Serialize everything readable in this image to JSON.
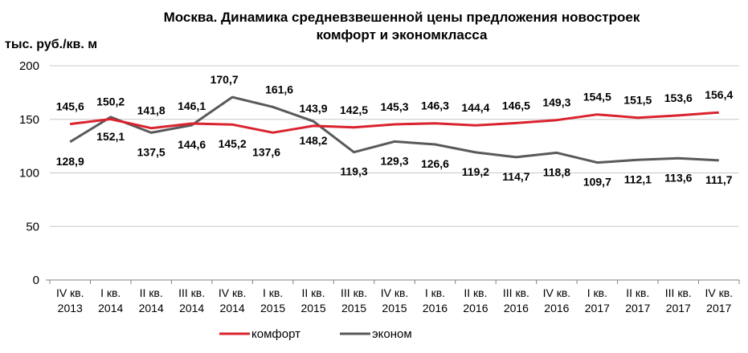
{
  "chart_data": {
    "type": "line",
    "title_line1": "Москва. Динамика средневзвешенной цены предложения новостроек",
    "title_line2": "комфорт и экономкласса",
    "ylabel": "тыс. руб./кв. м",
    "ylim": [
      0,
      200
    ],
    "yticks": [
      0,
      50,
      100,
      150,
      200
    ],
    "grid": true,
    "legend_position": "bottom",
    "categories": [
      {
        "line1": "IV кв.",
        "line2": "2013"
      },
      {
        "line1": "I кв.",
        "line2": "2014"
      },
      {
        "line1": "II кв.",
        "line2": "2014"
      },
      {
        "line1": "III кв.",
        "line2": "2014"
      },
      {
        "line1": "IV кв.",
        "line2": "2014"
      },
      {
        "line1": "I кв.",
        "line2": "2015"
      },
      {
        "line1": "II кв.",
        "line2": "2015"
      },
      {
        "line1": "III кв.",
        "line2": "2015"
      },
      {
        "line1": "IV кв.",
        "line2": "2015"
      },
      {
        "line1": "I кв.",
        "line2": "2016"
      },
      {
        "line1": "II кв.",
        "line2": "2016"
      },
      {
        "line1": "III кв.",
        "line2": "2016"
      },
      {
        "line1": "IV кв.",
        "line2": "2016"
      },
      {
        "line1": "I кв.",
        "line2": "2017"
      },
      {
        "line1": "II кв.",
        "line2": "2017"
      },
      {
        "line1": "III кв.",
        "line2": "2017"
      },
      {
        "line1": "IV кв.",
        "line2": "2017"
      }
    ],
    "series": [
      {
        "name": "комфорт",
        "color": "#d9232e",
        "values": [
          145.6,
          150.2,
          141.8,
          146.1,
          145.2,
          137.6,
          143.9,
          142.5,
          145.3,
          146.3,
          144.4,
          146.5,
          149.3,
          154.5,
          151.5,
          153.6,
          156.4
        ],
        "labels": [
          "145,6",
          "150,2",
          "141,8",
          "146,1",
          "145,2",
          "137,6",
          "143,9",
          "142,5",
          "145,3",
          "146,3",
          "144,4",
          "146,5",
          "149,3",
          "154,5",
          "151,5",
          "153,6",
          "156,4"
        ]
      },
      {
        "name": "эконом",
        "color": "#595959",
        "values": [
          128.9,
          152.1,
          137.5,
          144.6,
          170.7,
          161.6,
          148.2,
          119.3,
          129.3,
          126.6,
          119.2,
          114.7,
          118.8,
          109.7,
          112.1,
          113.6,
          111.7
        ],
        "labels": [
          "128,9",
          "152,1",
          "137,5",
          "144,6",
          "170,7",
          "161,6",
          "148,2",
          "119,3",
          "129,3",
          "126,6",
          "119,2",
          "114,7",
          "118,8",
          "109,7",
          "112,1",
          "113,6",
          "111,7"
        ]
      }
    ]
  }
}
